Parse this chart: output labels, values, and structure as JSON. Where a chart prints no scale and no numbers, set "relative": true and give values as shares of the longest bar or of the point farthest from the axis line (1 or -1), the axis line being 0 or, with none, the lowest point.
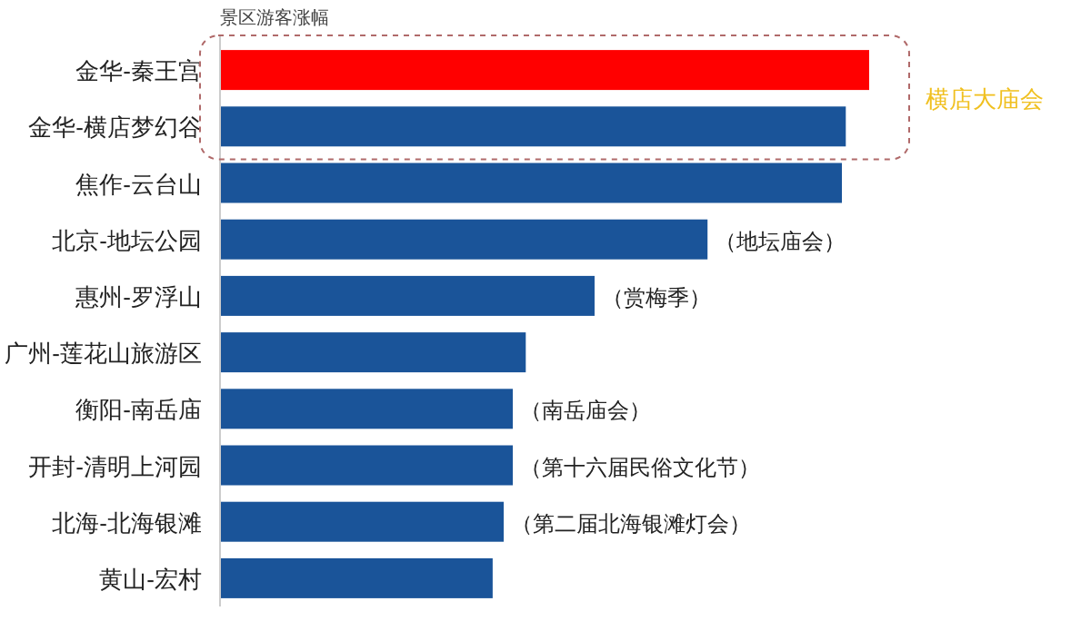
{
  "chart_data": {
    "type": "bar",
    "orientation": "horizontal",
    "relative": true,
    "xlabel": "景区游客涨幅",
    "categories": [
      "金华-秦王宫",
      "金华-横店梦幻谷",
      "焦作-云台山",
      "北京-地坛公园",
      "惠州-罗浮山",
      "广州-莲花山旅游区",
      "衡阳-南岳庙",
      "开封-清明上河园",
      "北海-北海银滩",
      "黄山-宏村"
    ],
    "values": [
      1,
      0.964,
      0.958,
      0.751,
      0.577,
      0.471,
      0.451,
      0.451,
      0.437,
      0.42
    ],
    "colors": [
      "#ff0000",
      "#1a5499",
      "#1a5499",
      "#1a5499",
      "#1a5499",
      "#1a5499",
      "#1a5499",
      "#1a5499",
      "#1a5499",
      "#1a5499"
    ],
    "annotations": [
      "横店大庙会",
      {
        "text": "（地坛庙会）",
        "x": 0.751,
        "y": "北京-地坛公园"
      },
      {
        "text": "（赏梅季）",
        "x": 0.577,
        "y": "惠州-罗浮山"
      },
      {
        "text": "（南岳庙会）",
        "x": 0.451,
        "y": "衡阳-南岳庙"
      },
      {
        "text": "（第十六届民俗文化节）",
        "x": 0.451,
        "y": "开封-清明上河园"
      },
      {
        "text": "（第二届北海银滩灯会）",
        "x": 0.437,
        "y": "北海-北海银滩"
      }
    ]
  }
}
